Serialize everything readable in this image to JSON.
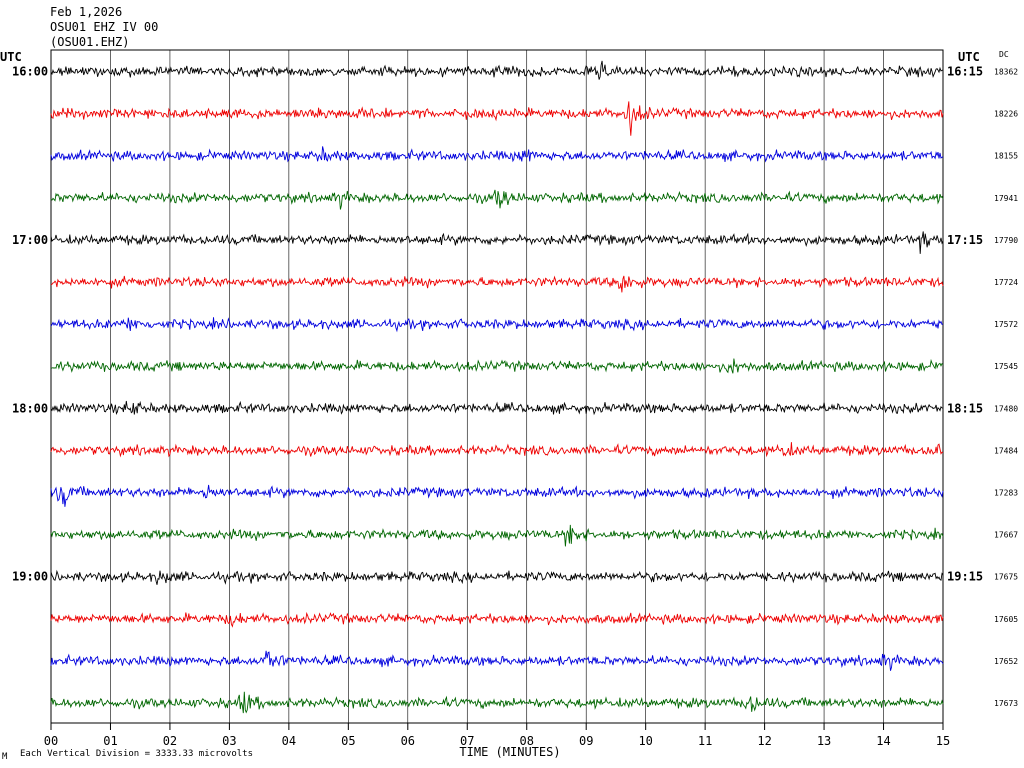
{
  "header": {
    "date": "Feb 1,2026",
    "station": "OSU01 EHZ IV 00",
    "channel": "(OSU01.EHZ)"
  },
  "left_tz": "UTC",
  "right_tz": "UTC",
  "dc_header": "DC",
  "chart_data": {
    "type": "line",
    "title": "",
    "xlabel": "TIME (MINUTES)",
    "ylabel": "",
    "xlim": [
      0,
      15
    ],
    "x_ticks": [
      "00",
      "01",
      "02",
      "03",
      "04",
      "05",
      "06",
      "07",
      "08",
      "09",
      "10",
      "11",
      "12",
      "13",
      "14",
      "15"
    ],
    "grid": true,
    "left_hour_labels": [
      {
        "row": 0,
        "text": "16:00"
      },
      {
        "row": 4,
        "text": "17:00"
      },
      {
        "row": 8,
        "text": "18:00"
      },
      {
        "row": 12,
        "text": "19:00"
      }
    ],
    "right_hour_labels": [
      {
        "row": 0,
        "text": "16:15"
      },
      {
        "row": 4,
        "text": "17:15"
      },
      {
        "row": 8,
        "text": "18:15"
      },
      {
        "row": 12,
        "text": "19:15"
      }
    ],
    "trace_colors": [
      "#000000",
      "#ee0000",
      "#0000dd",
      "#006600"
    ],
    "traces": [
      {
        "dc": "18362",
        "events": [
          {
            "min": 9.2,
            "amp": 1.2
          }
        ]
      },
      {
        "dc": "18226",
        "events": [
          {
            "min": 9.7,
            "amp": 3.6
          }
        ]
      },
      {
        "dc": "18155",
        "events": [
          {
            "min": 4.5,
            "amp": 1.2
          },
          {
            "min": 7.9,
            "amp": 1.2
          }
        ]
      },
      {
        "dc": "17941",
        "events": [
          {
            "min": 7.5,
            "amp": 2.2
          },
          {
            "min": 4.8,
            "amp": 1.2
          }
        ]
      },
      {
        "dc": "17790",
        "events": [
          {
            "min": 14.6,
            "amp": 1.6
          }
        ]
      },
      {
        "dc": "17724",
        "events": [
          {
            "min": 9.6,
            "amp": 2.8
          }
        ]
      },
      {
        "dc": "17572",
        "events": [
          {
            "min": 1.3,
            "amp": 1.2
          }
        ]
      },
      {
        "dc": "17545",
        "events": [
          {
            "min": 11.4,
            "amp": 1.3
          }
        ]
      },
      {
        "dc": "17480",
        "events": [
          {
            "min": 1.3,
            "amp": 1.6
          }
        ]
      },
      {
        "dc": "17484",
        "events": [
          {
            "min": 12.3,
            "amp": 1.4
          },
          {
            "min": 14.8,
            "amp": 1.2
          }
        ]
      },
      {
        "dc": "17283",
        "events": [
          {
            "min": 0.15,
            "amp": 2.8
          },
          {
            "min": 2.6,
            "amp": 1.2
          }
        ]
      },
      {
        "dc": "17667",
        "events": [
          {
            "min": 8.7,
            "amp": 2.4
          }
        ]
      },
      {
        "dc": "17675",
        "events": [
          {
            "min": 1.8,
            "amp": 1.2
          }
        ]
      },
      {
        "dc": "17605",
        "events": [
          {
            "min": 3.0,
            "amp": 1.1
          }
        ]
      },
      {
        "dc": "17652",
        "events": [
          {
            "min": 3.6,
            "amp": 2.6
          },
          {
            "min": 14.0,
            "amp": 1.3
          }
        ]
      },
      {
        "dc": "17673",
        "events": [
          {
            "min": 3.2,
            "amp": 2.4
          },
          {
            "min": 11.7,
            "amp": 2.0
          }
        ]
      }
    ]
  },
  "footer": {
    "note": "Each Vertical Division = 3333.33 microvolts",
    "mark": "M"
  }
}
